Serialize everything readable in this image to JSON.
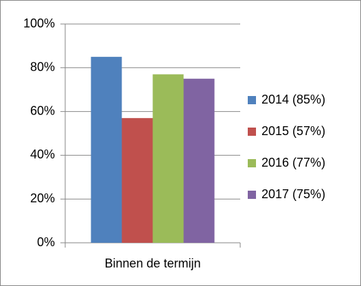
{
  "chart_data": {
    "type": "bar",
    "categories": [
      "Binnen de termijn"
    ],
    "series": [
      {
        "name": "2014 (85%)",
        "color": "#4f81bd",
        "values": [
          85
        ]
      },
      {
        "name": "2015 (57%)",
        "color": "#c0504d",
        "values": [
          57
        ]
      },
      {
        "name": "2016 (77%)",
        "color": "#9bbb59",
        "values": [
          77
        ]
      },
      {
        "name": "2017 (75%)",
        "color": "#8064a2",
        "values": [
          75
        ]
      }
    ],
    "ylim": [
      0,
      100
    ],
    "yticks": [
      {
        "value": 0,
        "label": "0%"
      },
      {
        "value": 20,
        "label": "20%"
      },
      {
        "value": 40,
        "label": "40%"
      },
      {
        "value": 60,
        "label": "60%"
      },
      {
        "value": 80,
        "label": "80%"
      },
      {
        "value": 100,
        "label": "100%"
      }
    ],
    "grid": true,
    "legend": "right"
  }
}
